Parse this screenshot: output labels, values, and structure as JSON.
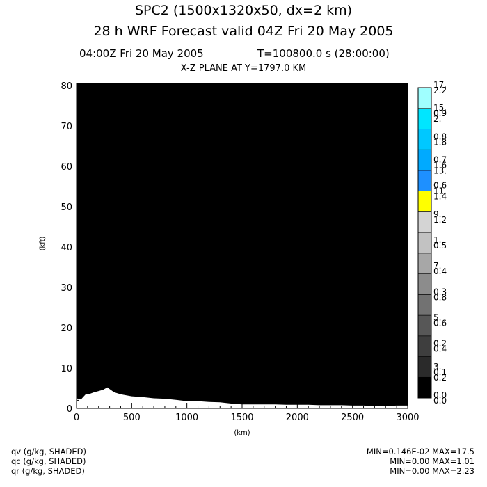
{
  "header": {
    "title_line1": "SPC2 (1500x1320x50, dx=2 km)",
    "title_line2": "28 h WRF Forecast valid 04Z Fri 20 May 2005",
    "time_left": "04:00Z Fri 20 May 2005",
    "time_right": "T=100800.0 s (28:00:00)",
    "plane": "X-Z PLANE AT Y=1797.0 KM"
  },
  "chart_data": {
    "type": "area",
    "title": "X-Z PLANE AT Y=1797.0 KM",
    "xlabel": "(km)",
    "ylabel": "(kft)",
    "xlim": [
      0,
      3000
    ],
    "ylim": [
      0,
      80.5
    ],
    "xticks": [
      0,
      500,
      1000,
      1500,
      2000,
      2500,
      3000
    ],
    "yticks": [
      0,
      10,
      20,
      30,
      40,
      50,
      60,
      70,
      80
    ],
    "grid": false,
    "fill_color": "#000000",
    "series": [
      {
        "name": "terrain",
        "color": "#ffffff",
        "x": [
          0,
          40,
          80,
          120,
          160,
          200,
          240,
          280,
          300,
          340,
          400,
          500,
          600,
          700,
          800,
          900,
          1000,
          1100,
          1200,
          1300,
          1400,
          1500,
          1600,
          1700,
          1800,
          1900,
          2000,
          2100,
          2200,
          2300,
          2400,
          2500,
          2600,
          2700,
          2800,
          2900,
          3000
        ],
        "values": [
          2.5,
          2.2,
          3.4,
          3.6,
          4.0,
          4.3,
          4.6,
          5.2,
          4.8,
          4.0,
          3.5,
          3.0,
          2.8,
          2.5,
          2.4,
          2.1,
          1.8,
          1.8,
          1.6,
          1.5,
          1.2,
          1.0,
          1.0,
          1.0,
          1.0,
          0.9,
          0.9,
          0.9,
          0.8,
          0.8,
          0.8,
          0.7,
          0.7,
          0.6,
          0.6,
          0.7,
          0.7
        ]
      }
    ]
  },
  "colorbar": {
    "swatches": [
      {
        "color": "#000000"
      },
      {
        "color": "#2a2a2a"
      },
      {
        "color": "#3e3e3e"
      },
      {
        "color": "#575757"
      },
      {
        "color": "#727272"
      },
      {
        "color": "#8c8c8c"
      },
      {
        "color": "#a7a7a7"
      },
      {
        "color": "#c2c2c2"
      },
      {
        "color": "#d4d4d4"
      },
      {
        "color": "#ffff00"
      },
      {
        "color": "#1e90ff"
      },
      {
        "color": "#00aaff"
      },
      {
        "color": "#00c8ff"
      },
      {
        "color": "#00e6ff"
      },
      {
        "color": "#a0ffff"
      }
    ],
    "labels": [
      [
        "0.0",
        "0.0"
      ],
      [
        "3.",
        "0.1",
        "0.2"
      ],
      [
        "0.2",
        "0.4"
      ],
      [
        "5.",
        "0.6"
      ],
      [
        "0.3",
        "0.8"
      ],
      [
        "7.",
        "0.4"
      ],
      [
        "1.",
        "0.5"
      ],
      [
        "9.",
        "1.2"
      ],
      [
        "0.6",
        "11.",
        "1.4"
      ],
      [
        "0.7",
        "1.6",
        "13."
      ],
      [
        "0.8",
        "1.8"
      ],
      [
        "15.",
        "0.9",
        "2."
      ],
      [
        "17.",
        "2.2"
      ]
    ]
  },
  "footer": {
    "left": [
      "qv (g/kg, SHADED)",
      "qc (g/kg, SHADED)",
      "qr (g/kg, SHADED)"
    ],
    "right": [
      "MIN=0.146E-02 MAX=17.5",
      "MIN=0.00 MAX=1.01",
      "MIN=0.00 MAX=2.23"
    ]
  }
}
